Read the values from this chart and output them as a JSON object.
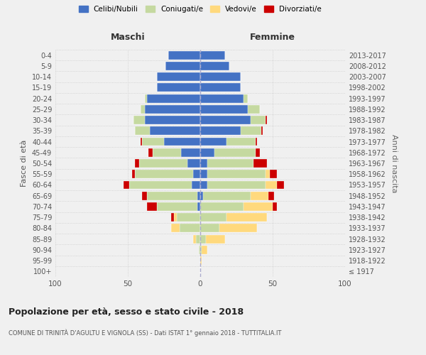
{
  "age_groups": [
    "100+",
    "95-99",
    "90-94",
    "85-89",
    "80-84",
    "75-79",
    "70-74",
    "65-69",
    "60-64",
    "55-59",
    "50-54",
    "45-49",
    "40-44",
    "35-39",
    "30-34",
    "25-29",
    "20-24",
    "15-19",
    "10-14",
    "5-9",
    "0-4"
  ],
  "birth_years": [
    "≤ 1917",
    "1918-1922",
    "1923-1927",
    "1928-1932",
    "1933-1937",
    "1938-1942",
    "1943-1947",
    "1948-1952",
    "1953-1957",
    "1958-1962",
    "1963-1967",
    "1968-1972",
    "1973-1977",
    "1978-1982",
    "1983-1987",
    "1988-1992",
    "1993-1997",
    "1998-2002",
    "2003-2007",
    "2008-2012",
    "2013-2017"
  ],
  "maschi_celibi": [
    0,
    0,
    0,
    0,
    0,
    0,
    2,
    2,
    6,
    5,
    9,
    13,
    25,
    35,
    38,
    38,
    37,
    30,
    30,
    24,
    22
  ],
  "maschi_coniugati": [
    0,
    0,
    1,
    3,
    14,
    16,
    28,
    35,
    43,
    40,
    33,
    20,
    15,
    10,
    8,
    3,
    1,
    0,
    0,
    0,
    0
  ],
  "maschi_vedovi": [
    0,
    0,
    0,
    2,
    6,
    2,
    0,
    0,
    0,
    0,
    0,
    0,
    0,
    0,
    0,
    0,
    0,
    0,
    0,
    0,
    0
  ],
  "maschi_divorziati": [
    0,
    0,
    0,
    0,
    0,
    2,
    7,
    3,
    4,
    2,
    3,
    3,
    1,
    0,
    0,
    0,
    0,
    0,
    0,
    0,
    0
  ],
  "femmine_nubili": [
    0,
    0,
    0,
    0,
    0,
    0,
    0,
    2,
    5,
    5,
    5,
    10,
    18,
    28,
    35,
    33,
    30,
    28,
    28,
    20,
    17
  ],
  "femmine_coniugate": [
    0,
    0,
    1,
    4,
    13,
    18,
    30,
    33,
    40,
    40,
    32,
    28,
    20,
    14,
    10,
    8,
    3,
    0,
    0,
    0,
    0
  ],
  "femmine_vedove": [
    0,
    1,
    4,
    13,
    26,
    28,
    20,
    12,
    8,
    3,
    0,
    0,
    0,
    0,
    0,
    0,
    0,
    0,
    0,
    0,
    0
  ],
  "femmine_divorziate": [
    0,
    0,
    0,
    0,
    0,
    0,
    3,
    4,
    5,
    5,
    9,
    3,
    1,
    1,
    1,
    0,
    0,
    0,
    0,
    0,
    0
  ],
  "colors": {
    "celibi": "#4472c4",
    "coniugati": "#c5d9a0",
    "vedovi": "#ffd97d",
    "divorziati": "#cc0000"
  },
  "xlim": 100,
  "title": "Popolazione per età, sesso e stato civile - 2018",
  "subtitle": "COMUNE DI TRINITÀ D'AGULTU E VIGNOLA (SS) - Dati ISTAT 1° gennaio 2018 - TUTTITALIA.IT",
  "ylabel_left": "Fasce di età",
  "ylabel_right": "Anni di nascita",
  "legend_labels": [
    "Celibi/Nubili",
    "Coniugati/e",
    "Vedovi/e",
    "Divorziati/e"
  ],
  "label_maschi": "Maschi",
  "label_femmine": "Femmine",
  "background_color": "#f0f0f0"
}
